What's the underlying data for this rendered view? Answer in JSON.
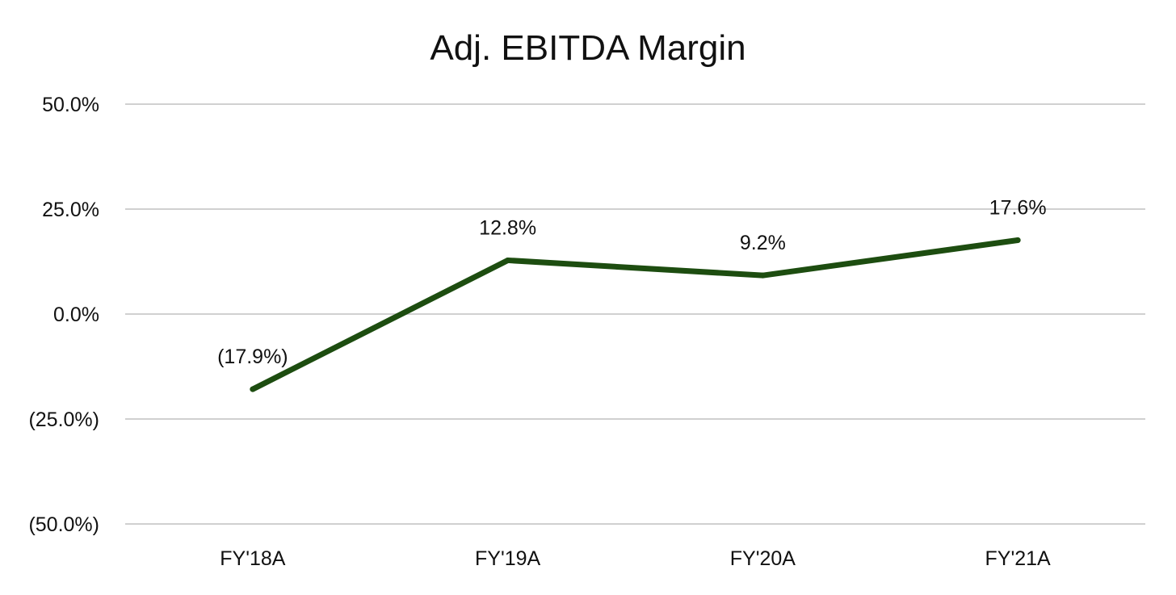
{
  "chart_data": {
    "type": "line",
    "title": "Adj. EBITDA Margin",
    "xlabel": "",
    "ylabel": "",
    "categories": [
      "FY'18A",
      "FY'19A",
      "FY'20A",
      "FY'21A"
    ],
    "series": [
      {
        "values": [
          -17.9,
          12.8,
          9.2,
          17.6
        ],
        "data_labels": [
          "(17.9%)",
          "12.8%",
          "9.2%",
          "17.6%"
        ]
      }
    ],
    "ylim": [
      -50,
      50
    ],
    "y_ticks": [
      50,
      25,
      0,
      -25,
      -50
    ],
    "y_tick_labels": [
      "50.0%",
      "25.0%",
      "0.0%",
      "(25.0%)",
      "(50.0%)"
    ],
    "grid": true,
    "legend": "none",
    "colors": {
      "line": "#1d4d10",
      "grid": "#d0d0d0",
      "text": "#111111"
    }
  }
}
